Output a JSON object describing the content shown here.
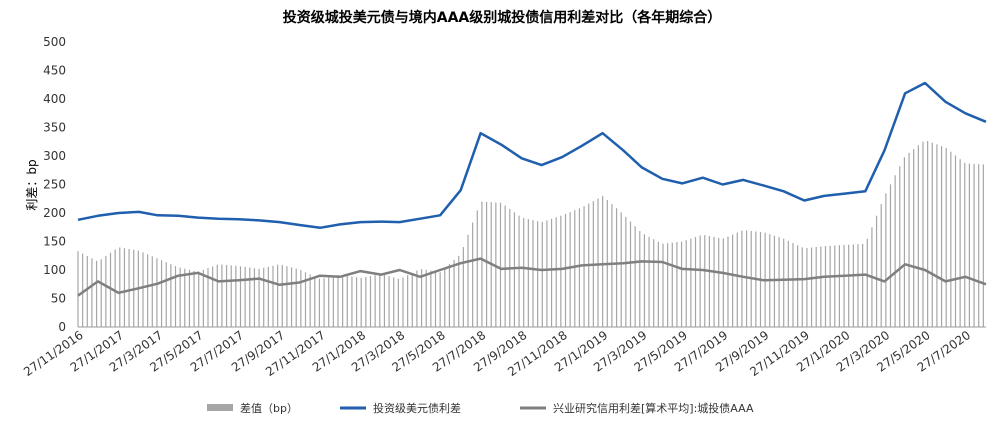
{
  "chart_data": {
    "type": "bar+line",
    "title": "投资级城投美元债与境内AAA级别城投债信用利差对比（各年期综合）",
    "ylabel": "利差：bp",
    "ylim": [
      0,
      500
    ],
    "yticks": [
      0,
      50,
      100,
      150,
      200,
      250,
      300,
      350,
      400,
      450,
      500
    ],
    "x_tick_labels": [
      "27/11/2016",
      "27/1/2017",
      "27/3/2017",
      "27/5/2017",
      "27/7/2017",
      "27/9/2017",
      "27/11/2017",
      "27/1/2018",
      "27/3/2018",
      "27/5/2018",
      "27/7/2018",
      "27/9/2018",
      "27/11/2018",
      "27/1/2019",
      "27/3/2019",
      "27/5/2019",
      "27/7/2019",
      "27/9/2019",
      "27/11/2019",
      "27/1/2020",
      "27/3/2020",
      "27/5/2020",
      "27/7/2020"
    ],
    "legend": [
      "差值（bp）",
      "投资级美元债利差",
      "兴业研究信用利差[算术平均]:城投债AAA"
    ],
    "colors": {
      "bar": "#a6a6a6",
      "usd": "#1f5fad",
      "aaa": "#7f7f7f"
    },
    "grid": false,
    "series_usd": [
      {
        "x": "27/11/2016",
        "y": 188
      },
      {
        "x": "27/12/2016",
        "y": 195
      },
      {
        "x": "27/1/2017",
        "y": 200
      },
      {
        "x": "27/2/2017",
        "y": 202
      },
      {
        "x": "27/3/2017",
        "y": 196
      },
      {
        "x": "27/4/2017",
        "y": 195
      },
      {
        "x": "27/5/2017",
        "y": 192
      },
      {
        "x": "27/6/2017",
        "y": 190
      },
      {
        "x": "27/7/2017",
        "y": 189
      },
      {
        "x": "27/8/2017",
        "y": 187
      },
      {
        "x": "27/9/2017",
        "y": 184
      },
      {
        "x": "27/10/2017",
        "y": 179
      },
      {
        "x": "27/11/2017",
        "y": 174
      },
      {
        "x": "27/12/2017",
        "y": 180
      },
      {
        "x": "27/1/2018",
        "y": 184
      },
      {
        "x": "27/2/2018",
        "y": 185
      },
      {
        "x": "27/3/2018",
        "y": 184
      },
      {
        "x": "27/4/2018",
        "y": 190
      },
      {
        "x": "27/5/2018",
        "y": 196
      },
      {
        "x": "27/6/2018",
        "y": 240
      },
      {
        "x": "27/7/2018",
        "y": 340
      },
      {
        "x": "27/8/2018",
        "y": 320
      },
      {
        "x": "27/9/2018",
        "y": 296
      },
      {
        "x": "27/10/2018",
        "y": 284
      },
      {
        "x": "27/11/2018",
        "y": 298
      },
      {
        "x": "27/12/2018",
        "y": 318
      },
      {
        "x": "27/1/2019",
        "y": 340
      },
      {
        "x": "27/2/2019",
        "y": 310
      },
      {
        "x": "27/3/2019",
        "y": 280
      },
      {
        "x": "27/4/2019",
        "y": 260
      },
      {
        "x": "27/5/2019",
        "y": 252
      },
      {
        "x": "27/6/2019",
        "y": 262
      },
      {
        "x": "27/7/2019",
        "y": 250
      },
      {
        "x": "27/8/2019",
        "y": 258
      },
      {
        "x": "27/9/2019",
        "y": 248
      },
      {
        "x": "27/10/2019",
        "y": 238
      },
      {
        "x": "27/11/2019",
        "y": 222
      },
      {
        "x": "27/12/2019",
        "y": 230
      },
      {
        "x": "27/1/2020",
        "y": 234
      },
      {
        "x": "27/2/2020",
        "y": 238
      },
      {
        "x": "27/3/2020",
        "y": 310
      },
      {
        "x": "27/4/2020",
        "y": 410
      },
      {
        "x": "27/5/2020",
        "y": 428
      },
      {
        "x": "27/6/2020",
        "y": 395
      },
      {
        "x": "27/7/2020",
        "y": 375
      },
      {
        "x": "27/8/2020",
        "y": 360
      }
    ],
    "series_aaa": [
      {
        "x": "27/11/2016",
        "y": 55
      },
      {
        "x": "27/12/2016",
        "y": 80
      },
      {
        "x": "27/1/2017",
        "y": 60
      },
      {
        "x": "27/2/2017",
        "y": 68
      },
      {
        "x": "27/3/2017",
        "y": 76
      },
      {
        "x": "27/4/2017",
        "y": 90
      },
      {
        "x": "27/5/2017",
        "y": 95
      },
      {
        "x": "27/6/2017",
        "y": 80
      },
      {
        "x": "27/7/2017",
        "y": 82
      },
      {
        "x": "27/8/2017",
        "y": 85
      },
      {
        "x": "27/9/2017",
        "y": 74
      },
      {
        "x": "27/10/2017",
        "y": 78
      },
      {
        "x": "27/11/2017",
        "y": 90
      },
      {
        "x": "27/12/2017",
        "y": 88
      },
      {
        "x": "27/1/2018",
        "y": 98
      },
      {
        "x": "27/2/2018",
        "y": 92
      },
      {
        "x": "27/3/2018",
        "y": 100
      },
      {
        "x": "27/4/2018",
        "y": 88
      },
      {
        "x": "27/5/2018",
        "y": 100
      },
      {
        "x": "27/6/2018",
        "y": 112
      },
      {
        "x": "27/7/2018",
        "y": 120
      },
      {
        "x": "27/8/2018",
        "y": 102
      },
      {
        "x": "27/9/2018",
        "y": 104
      },
      {
        "x": "27/10/2018",
        "y": 100
      },
      {
        "x": "27/11/2018",
        "y": 102
      },
      {
        "x": "27/12/2018",
        "y": 108
      },
      {
        "x": "27/1/2019",
        "y": 110
      },
      {
        "x": "27/2/2019",
        "y": 112
      },
      {
        "x": "27/3/2019",
        "y": 115
      },
      {
        "x": "27/4/2019",
        "y": 114
      },
      {
        "x": "27/5/2019",
        "y": 102
      },
      {
        "x": "27/6/2019",
        "y": 100
      },
      {
        "x": "27/7/2019",
        "y": 95
      },
      {
        "x": "27/8/2019",
        "y": 88
      },
      {
        "x": "27/9/2019",
        "y": 82
      },
      {
        "x": "27/10/2019",
        "y": 83
      },
      {
        "x": "27/11/2019",
        "y": 84
      },
      {
        "x": "27/12/2019",
        "y": 88
      },
      {
        "x": "27/1/2020",
        "y": 90
      },
      {
        "x": "27/2/2020",
        "y": 92
      },
      {
        "x": "27/3/2020",
        "y": 80
      },
      {
        "x": "27/4/2020",
        "y": 110
      },
      {
        "x": "27/5/2020",
        "y": 100
      },
      {
        "x": "27/6/2020",
        "y": 80
      },
      {
        "x": "27/7/2020",
        "y": 88
      },
      {
        "x": "27/8/2020",
        "y": 75
      }
    ]
  }
}
